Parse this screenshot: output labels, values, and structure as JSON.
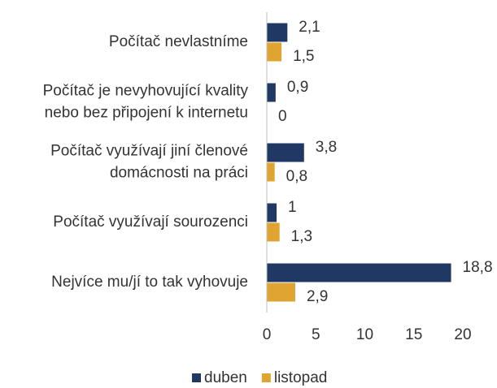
{
  "chart_data": {
    "type": "hbar",
    "categories": [
      [
        "Počítač nevlastníme"
      ],
      [
        "Počítač je nevyhovující kvality",
        "nebo bez připojení k internetu"
      ],
      [
        "Počítač využívají jiní členové",
        "domácnosti na práci"
      ],
      [
        "Počítač využívají sourozenci"
      ],
      [
        "Nejvíce mu/jí to tak vyhovuje"
      ]
    ],
    "series": [
      {
        "name": "duben",
        "color": "#203864",
        "values": [
          2.1,
          0.9,
          3.8,
          1,
          18.8
        ],
        "value_labels": [
          "2,1",
          "0,9",
          "3,8",
          "1",
          "18,8"
        ]
      },
      {
        "name": "listopad",
        "color": "#e0a431",
        "values": [
          1.5,
          0,
          0.8,
          1.3,
          2.9
        ],
        "value_labels": [
          "1,5",
          "0",
          "0,8",
          "1,3",
          "2,9"
        ]
      }
    ],
    "xlim": [
      0,
      20
    ],
    "xticks": [
      0,
      5,
      10,
      15,
      20
    ],
    "legend": "bottom"
  }
}
